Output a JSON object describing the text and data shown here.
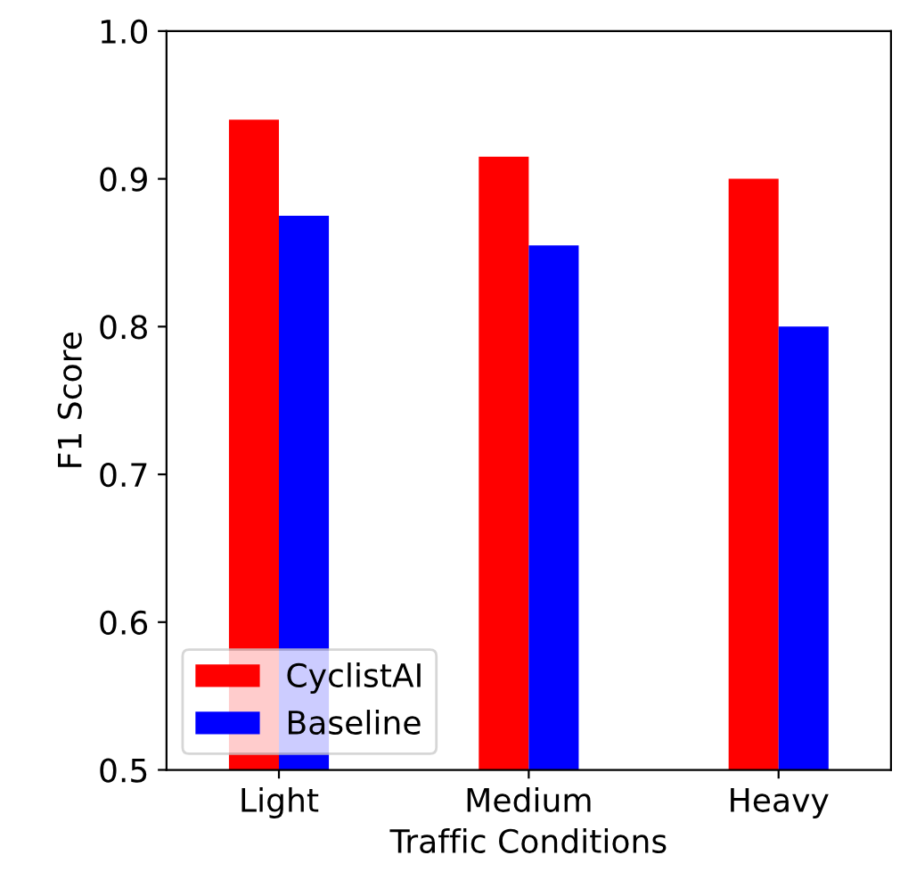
{
  "chart_data": {
    "type": "bar",
    "xlabel": "Traffic Conditions",
    "ylabel": "F1 Score",
    "categories": [
      "Light",
      "Medium",
      "Heavy"
    ],
    "series": [
      {
        "name": "CyclistAI",
        "color": "#ff0000",
        "values": [
          0.94,
          0.915,
          0.9
        ]
      },
      {
        "name": "Baseline",
        "color": "#0000ff",
        "values": [
          0.875,
          0.855,
          0.8
        ]
      }
    ],
    "ylim": [
      0.5,
      1.0
    ],
    "yticks": [
      0.5,
      0.6,
      0.7,
      0.8,
      0.9,
      {
        "value": 1.0,
        "label": "1.0"
      }
    ],
    "legend": "bottom left",
    "grid": false
  }
}
